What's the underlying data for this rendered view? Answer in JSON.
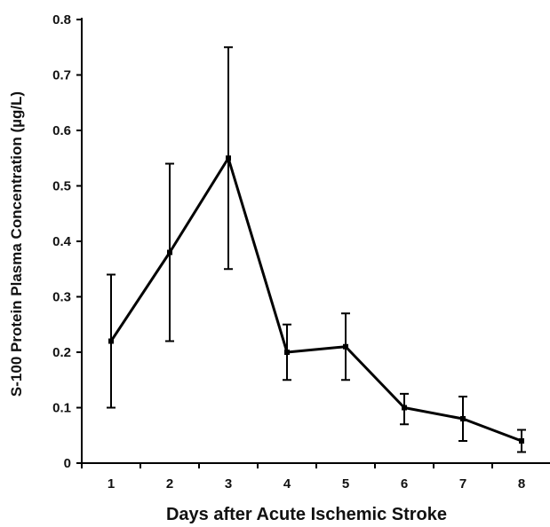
{
  "chart_data": {
    "type": "line",
    "title": "",
    "xlabel": "Days after Acute Ischemic Stroke",
    "ylabel": "S-100 Protein Plasma Concentration (µg/L)",
    "x": [
      1,
      2,
      3,
      4,
      5,
      6,
      7,
      8
    ],
    "x_tick_labels": [
      "1",
      "2",
      "3",
      "4",
      "5",
      "6",
      "7",
      "8"
    ],
    "y_ticks": [
      0,
      0.1,
      0.2,
      0.3,
      0.4,
      0.5,
      0.6,
      0.7,
      0.8
    ],
    "y_tick_labels": [
      "0",
      "0.1",
      "0.2",
      "0.3",
      "0.4",
      "0.5",
      "0.6",
      "0.7",
      "0.8"
    ],
    "ylim": [
      0,
      0.8
    ],
    "xlim": [
      0.5,
      8.5
    ],
    "grid": false,
    "legend": "none",
    "series": [
      {
        "values": [
          0.22,
          0.38,
          0.55,
          0.2,
          0.21,
          0.1,
          0.08,
          0.04
        ],
        "error_upper": [
          0.34,
          0.54,
          0.75,
          0.25,
          0.27,
          0.125,
          0.12,
          0.06
        ],
        "error_lower": [
          0.1,
          0.22,
          0.35,
          0.15,
          0.15,
          0.07,
          0.04,
          0.02
        ],
        "color": "#000000"
      }
    ]
  }
}
